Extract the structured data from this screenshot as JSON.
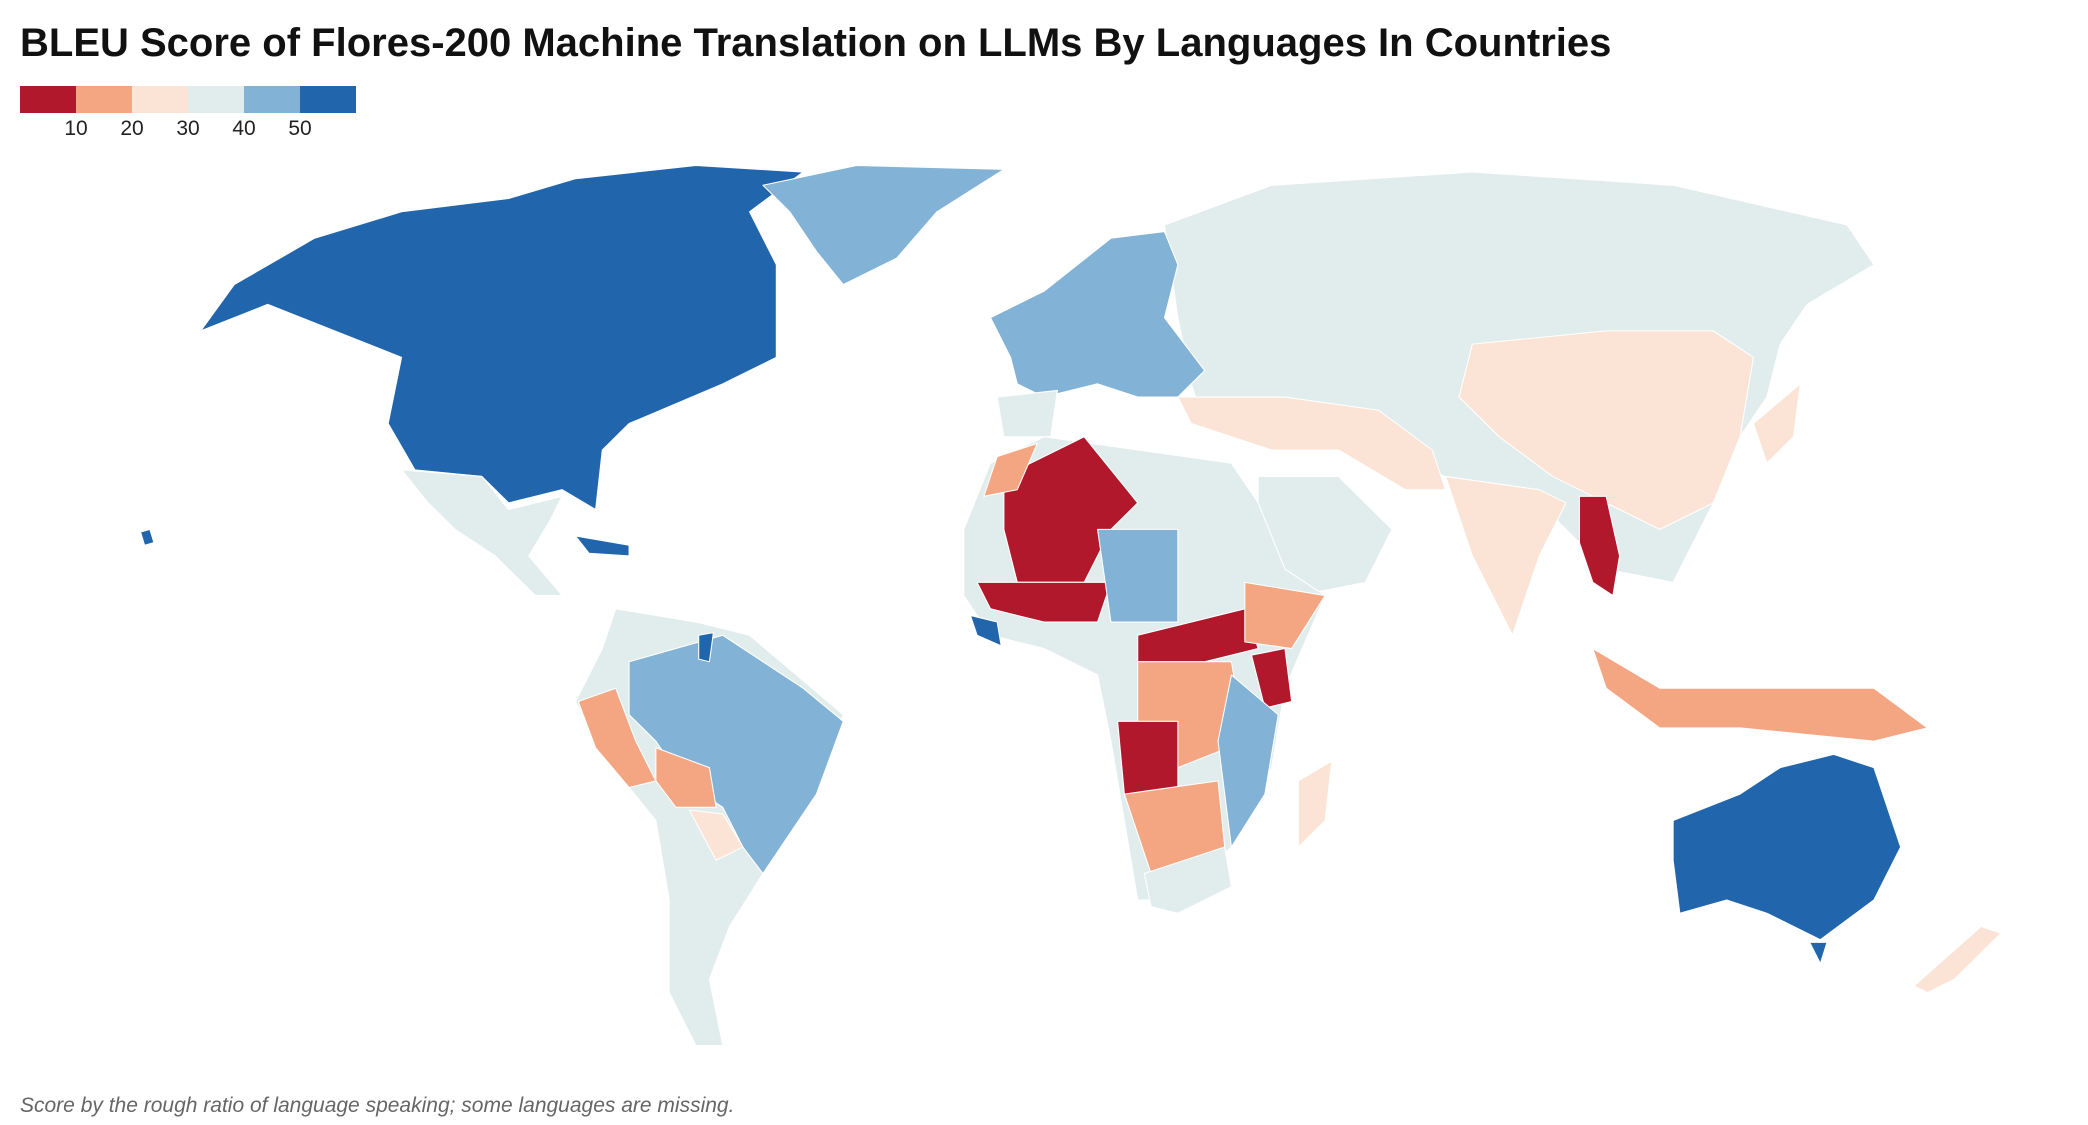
{
  "title": "BLEU Score of Flores-200 Machine Translation on LLMs By Languages In Countries",
  "legend": {
    "colors": [
      "#b2182b",
      "#f4a582",
      "#fbe4d5",
      "#e1ecec",
      "#82b3d6",
      "#2166ac"
    ],
    "ticks": [
      10,
      20,
      30,
      40,
      50
    ]
  },
  "footnote": "Score by the rough ratio of language speaking; some languages are missing."
}
